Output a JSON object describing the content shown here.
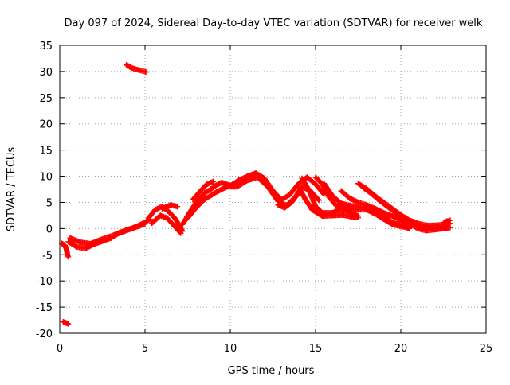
{
  "chart_data": {
    "type": "scatter",
    "title": "Day 097 of 2024, Sidereal Day-to-day VTEC variation (SDTVAR) for receiver welk",
    "xlabel": "GPS time / hours",
    "ylabel": "SDTVAR / TECUs",
    "xlim": [
      0,
      25
    ],
    "ylim": [
      -20,
      35
    ],
    "xticks": [
      0,
      5,
      10,
      15,
      20,
      25
    ],
    "yticks": [
      -20,
      -15,
      -10,
      -5,
      0,
      5,
      10,
      15,
      20,
      25,
      30,
      35
    ],
    "grid": true,
    "marker": "+",
    "series": [
      {
        "name": "SDTVAR",
        "color": "#ff0000",
        "segments": [
          [
            [
              0.1,
              -2.8
            ],
            [
              0.3,
              -3.2
            ],
            [
              0.4,
              -4.0
            ],
            [
              0.45,
              -5.0
            ],
            [
              0.5,
              -5.4
            ]
          ],
          [
            [
              0.2,
              -17.8
            ],
            [
              0.35,
              -18.0
            ],
            [
              0.5,
              -18.2
            ]
          ],
          [
            [
              0.5,
              -2.5
            ],
            [
              1.0,
              -3.5
            ],
            [
              1.5,
              -3.8
            ],
            [
              2.0,
              -3.0
            ],
            [
              2.5,
              -2.4
            ],
            [
              3.0,
              -1.8
            ],
            [
              3.5,
              -0.8
            ],
            [
              4.0,
              -0.2
            ],
            [
              4.5,
              0.4
            ],
            [
              5.0,
              1.2
            ],
            [
              5.3,
              1.8
            ]
          ],
          [
            [
              0.6,
              -1.8
            ],
            [
              1.2,
              -2.6
            ],
            [
              1.8,
              -2.9
            ],
            [
              2.5,
              -2.0
            ],
            [
              3.2,
              -1.2
            ],
            [
              3.8,
              -0.5
            ],
            [
              4.4,
              0.2
            ],
            [
              5.0,
              0.9
            ]
          ],
          [
            [
              3.9,
              31.3
            ],
            [
              4.2,
              30.7
            ],
            [
              4.6,
              30.3
            ],
            [
              5.1,
              29.9
            ]
          ],
          [
            [
              5.2,
              2.0
            ],
            [
              5.6,
              3.6
            ],
            [
              6.0,
              4.2
            ],
            [
              6.4,
              3.2
            ],
            [
              6.8,
              1.8
            ],
            [
              7.2,
              -0.5
            ]
          ],
          [
            [
              5.4,
              1.0
            ],
            [
              5.9,
              2.5
            ],
            [
              6.3,
              2.0
            ],
            [
              6.8,
              0.2
            ],
            [
              7.1,
              -0.9
            ]
          ],
          [
            [
              6.0,
              3.8
            ],
            [
              6.5,
              4.5
            ],
            [
              6.9,
              4.2
            ]
          ],
          [
            [
              7.2,
              0.8
            ],
            [
              7.6,
              3.0
            ],
            [
              8.0,
              5.0
            ],
            [
              8.5,
              6.8
            ],
            [
              9.0,
              7.8
            ]
          ],
          [
            [
              7.5,
              2.0
            ],
            [
              8.0,
              4.0
            ],
            [
              8.5,
              5.6
            ],
            [
              9.2,
              7.0
            ]
          ],
          [
            [
              7.8,
              5.5
            ],
            [
              8.2,
              7.0
            ],
            [
              8.6,
              8.4
            ],
            [
              9.0,
              9.0
            ]
          ],
          [
            [
              9.0,
              8.0
            ],
            [
              9.5,
              8.8
            ],
            [
              10.0,
              8.2
            ],
            [
              10.5,
              9.2
            ],
            [
              11.0,
              10.0
            ],
            [
              11.5,
              10.6
            ],
            [
              12.0,
              9.6
            ],
            [
              12.5,
              7.2
            ],
            [
              13.0,
              5.5
            ],
            [
              13.5,
              6.5
            ],
            [
              14.0,
              8.6
            ],
            [
              14.5,
              9.8
            ],
            [
              15.0,
              8.5
            ],
            [
              15.5,
              6.5
            ]
          ],
          [
            [
              9.2,
              7.0
            ],
            [
              9.8,
              8.0
            ],
            [
              10.4,
              8.0
            ],
            [
              11.0,
              9.2
            ],
            [
              11.6,
              9.8
            ],
            [
              12.2,
              8.0
            ],
            [
              12.8,
              5.2
            ],
            [
              13.3,
              4.4
            ],
            [
              13.8,
              6.0
            ],
            [
              14.2,
              8.0
            ],
            [
              14.7,
              7.2
            ],
            [
              15.2,
              5.4
            ]
          ],
          [
            [
              12.8,
              4.5
            ],
            [
              13.2,
              4.0
            ],
            [
              13.6,
              5.0
            ],
            [
              14.0,
              6.8
            ]
          ],
          [
            [
              14.2,
              9.6
            ],
            [
              14.6,
              7.4
            ],
            [
              15.0,
              4.2
            ],
            [
              15.4,
              3.0
            ],
            [
              16.0,
              3.0
            ],
            [
              16.5,
              3.8
            ],
            [
              17.0,
              3.2
            ],
            [
              17.5,
              2.4
            ]
          ],
          [
            [
              14.0,
              8.0
            ],
            [
              14.4,
              5.6
            ],
            [
              14.8,
              3.6
            ],
            [
              15.4,
              2.4
            ],
            [
              16.0,
              2.5
            ],
            [
              16.6,
              2.6
            ],
            [
              17.2,
              2.2
            ],
            [
              17.5,
              2.1
            ]
          ],
          [
            [
              15.0,
              9.8
            ],
            [
              15.4,
              8.5
            ],
            [
              15.8,
              6.0
            ],
            [
              16.2,
              4.4
            ],
            [
              16.8,
              3.8
            ],
            [
              17.5,
              3.6
            ],
            [
              18.0,
              3.6
            ],
            [
              18.5,
              2.8
            ],
            [
              19.0,
              1.8
            ],
            [
              19.5,
              0.8
            ],
            [
              20.0,
              0.4
            ],
            [
              20.5,
              0.2
            ]
          ],
          [
            [
              15.5,
              8.6
            ],
            [
              16.0,
              6.2
            ],
            [
              16.5,
              4.8
            ],
            [
              17.0,
              4.4
            ],
            [
              17.5,
              4.2
            ],
            [
              18.0,
              3.8
            ],
            [
              18.5,
              3.0
            ],
            [
              19.0,
              2.2
            ],
            [
              19.5,
              1.2
            ],
            [
              20.0,
              0.6
            ],
            [
              20.5,
              0.0
            ]
          ],
          [
            [
              16.5,
              7.2
            ],
            [
              17.0,
              5.8
            ],
            [
              17.5,
              5.0
            ],
            [
              18.0,
              4.5
            ],
            [
              18.5,
              3.8
            ],
            [
              19.0,
              3.0
            ],
            [
              19.5,
              2.4
            ],
            [
              20.0,
              1.6
            ],
            [
              20.5,
              0.8
            ],
            [
              21.0,
              0.4
            ],
            [
              21.5,
              0.2
            ],
            [
              22.0,
              0.1
            ]
          ],
          [
            [
              17.5,
              8.6
            ],
            [
              18.0,
              7.6
            ],
            [
              18.5,
              6.2
            ],
            [
              19.0,
              5.0
            ],
            [
              19.5,
              3.8
            ],
            [
              20.0,
              2.6
            ],
            [
              20.5,
              1.6
            ],
            [
              21.0,
              1.0
            ],
            [
              21.5,
              0.6
            ],
            [
              22.0,
              0.6
            ],
            [
              22.5,
              0.8
            ],
            [
              22.9,
              1.0
            ]
          ],
          [
            [
              17.8,
              7.8
            ],
            [
              18.3,
              6.6
            ],
            [
              18.8,
              5.2
            ],
            [
              19.3,
              4.0
            ],
            [
              19.8,
              2.8
            ],
            [
              20.3,
              1.8
            ],
            [
              20.8,
              1.0
            ],
            [
              21.3,
              0.4
            ],
            [
              21.8,
              0.0
            ],
            [
              22.3,
              0.0
            ],
            [
              22.8,
              0.2
            ]
          ],
          [
            [
              20.0,
              2.0
            ],
            [
              20.5,
              1.0
            ],
            [
              21.0,
              0.0
            ],
            [
              21.5,
              -0.4
            ],
            [
              22.0,
              -0.2
            ],
            [
              22.5,
              0.0
            ],
            [
              22.9,
              0.2
            ]
          ],
          [
            [
              22.5,
              1.0
            ],
            [
              22.7,
              1.4
            ],
            [
              22.9,
              1.6
            ]
          ]
        ]
      }
    ]
  }
}
